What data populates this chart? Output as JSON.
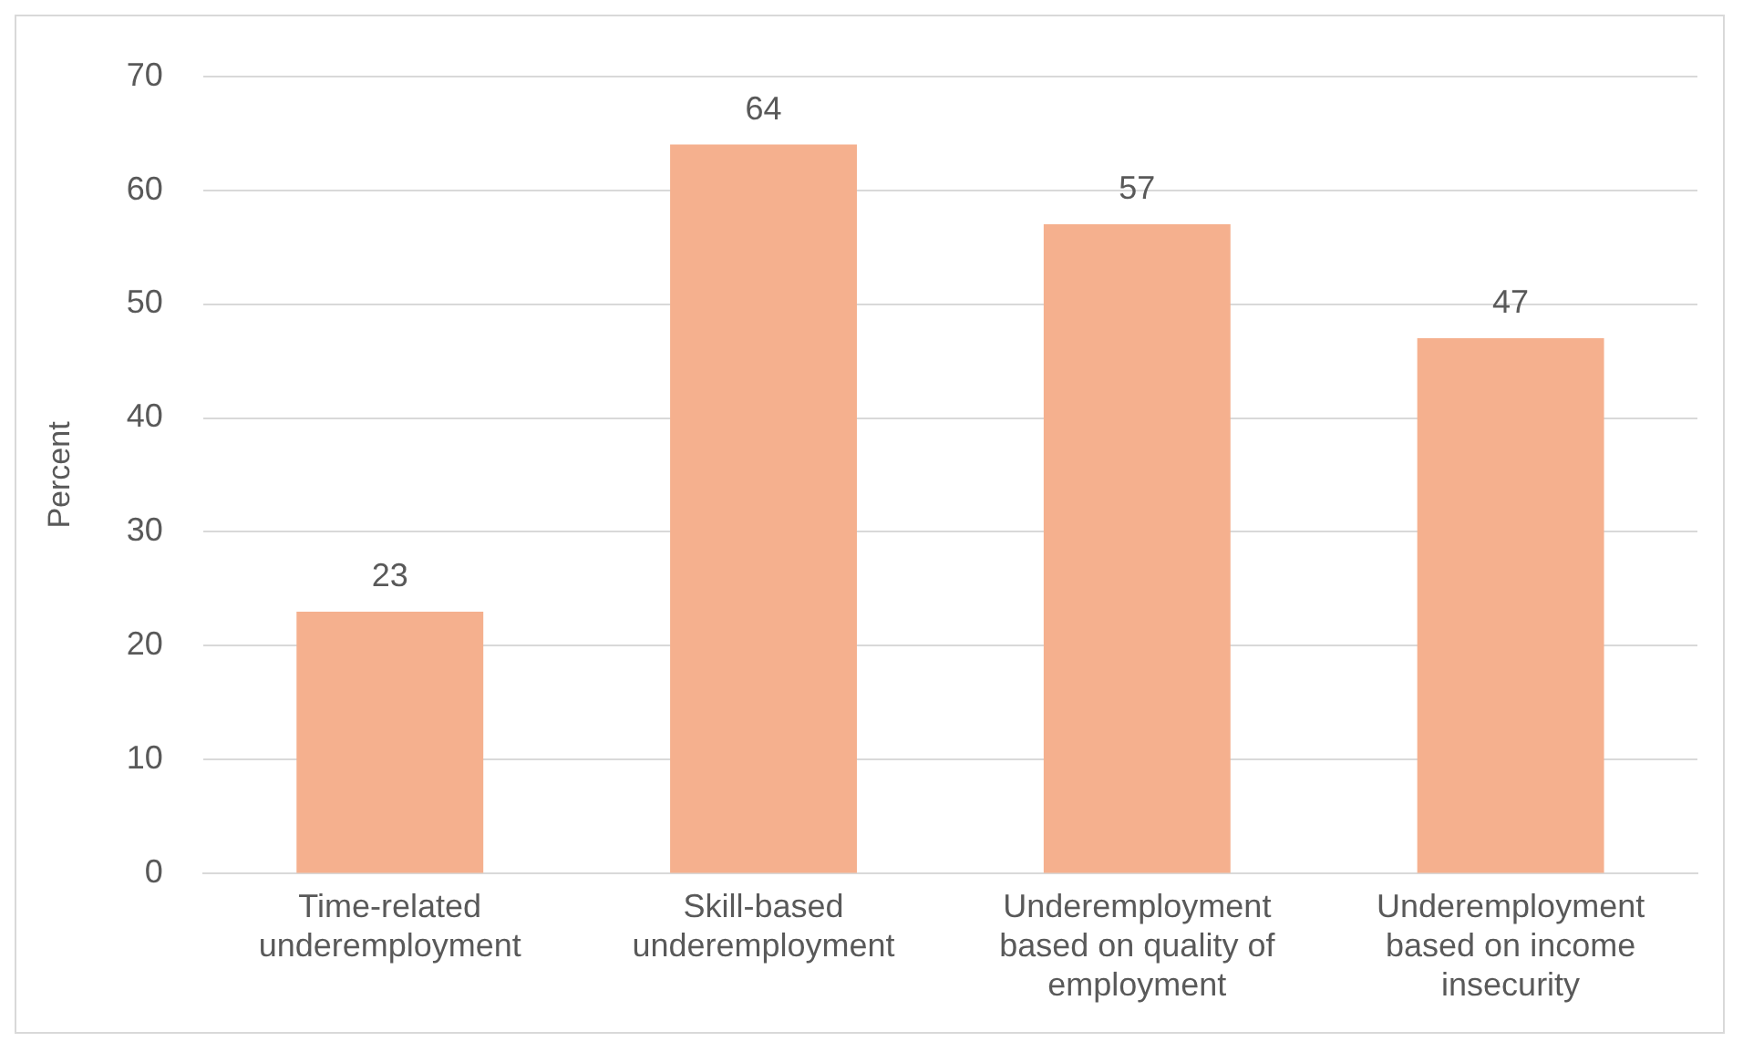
{
  "chart_data": {
    "type": "bar",
    "ylabel": "Percent",
    "categories": [
      "Time-related underemployment",
      "Skill-based underemployment",
      "Underemployment based on quality of employment",
      "Underemployment based on income insecurity"
    ],
    "values": [
      23,
      64,
      57,
      47
    ],
    "color": "#f5b08e",
    "ylim": [
      0,
      70
    ],
    "yticks": [
      0,
      10,
      20,
      30,
      40,
      50,
      60,
      70
    ],
    "grid": "y",
    "data_labels": true,
    "legend": false
  }
}
